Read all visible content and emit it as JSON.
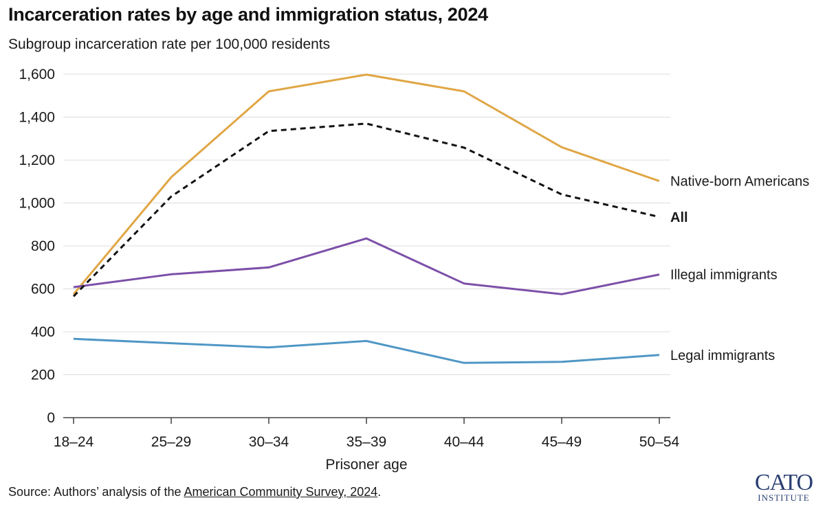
{
  "header": {
    "title": "Incarceration rates by age and immigration status, 2024",
    "subtitle": "Subgroup incarceration rate per 100,000 residents"
  },
  "footer": {
    "source_prefix": "Source: Authors’ analysis of the ",
    "source_link": "American Community Survey, 2024",
    "source_suffix": "."
  },
  "logo": {
    "name": "CATO",
    "sub": "INSTITUTE"
  },
  "chart_data": {
    "type": "line",
    "title": "Incarceration rates by age and immigration status, 2024",
    "subtitle": "Subgroup incarceration rate per 100,000 residents",
    "xlabel": "Prisoner age",
    "ylabel": "",
    "categories": [
      "18–24",
      "25–29",
      "30–34",
      "35–39",
      "40–44",
      "45–49",
      "50–54"
    ],
    "ylim": [
      0,
      1600
    ],
    "yticks": [
      0,
      200,
      400,
      600,
      800,
      1000,
      1200,
      1400,
      1600
    ],
    "ytick_labels": [
      "0",
      "200",
      "400",
      "600",
      "800",
      "1,000",
      "1,200",
      "1,400",
      "1,600"
    ],
    "grid": true,
    "series": [
      {
        "name": "Native-born Americans",
        "color": "#e0a645",
        "dashed": false,
        "bold": false,
        "values": [
          575,
          1120,
          1520,
          1598,
          1520,
          1260,
          1102
        ]
      },
      {
        "name": "All",
        "color": "#111111",
        "dashed": true,
        "bold": true,
        "values": [
          565,
          1030,
          1335,
          1370,
          1258,
          1040,
          935
        ]
      },
      {
        "name": "Illegal immigrants",
        "color": "#7c4fa8",
        "dashed": false,
        "bold": false,
        "values": [
          608,
          668,
          700,
          835,
          625,
          575,
          667
        ]
      },
      {
        "name": "Legal immigrants",
        "color": "#4f97c5",
        "dashed": false,
        "bold": false,
        "values": [
          367,
          347,
          327,
          357,
          255,
          260,
          292
        ]
      }
    ]
  }
}
